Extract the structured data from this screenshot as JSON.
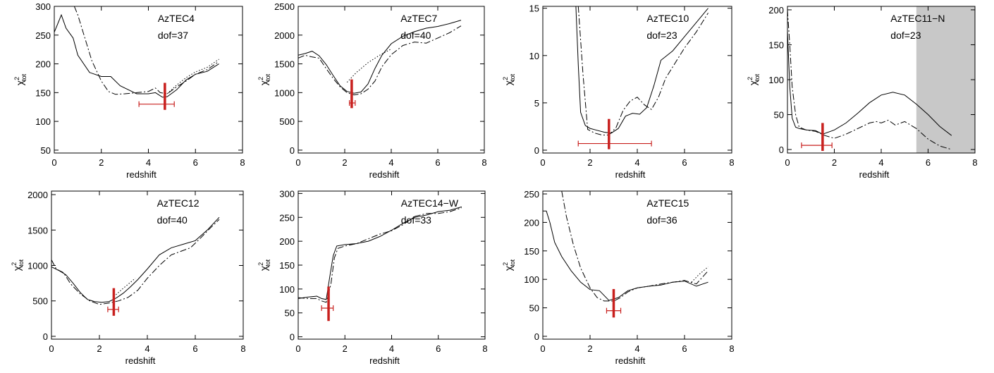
{
  "figure": {
    "xlabel": "redshift"
  },
  "chart_data": [
    {
      "type": "line",
      "panel": "AzTEC4",
      "name": "AzTEC4",
      "dof_label": "dof=37",
      "xlim": [
        0,
        8
      ],
      "ylim": [
        45,
        300
      ],
      "xticks": [
        0,
        2,
        4,
        6,
        8
      ],
      "yticks": [
        50,
        100,
        150,
        200,
        250,
        300
      ],
      "ylabel": "χ²tot",
      "xlabel": "redshift",
      "series": [
        {
          "style": "solid",
          "x": [
            0,
            0.15,
            0.3,
            0.5,
            0.8,
            1.0,
            1.5,
            2.0,
            2.4,
            2.8,
            3.5,
            4.0,
            4.3,
            4.6,
            4.8,
            5.2,
            5.6,
            6.0,
            6.5,
            7.0
          ],
          "y": [
            255,
            270,
            285,
            262,
            245,
            215,
            185,
            178,
            178,
            162,
            148,
            148,
            150,
            142,
            143,
            155,
            172,
            182,
            187,
            200
          ]
        },
        {
          "style": "dashdot",
          "x": [
            0.85,
            1.0,
            1.3,
            1.6,
            2.0,
            2.3,
            2.6,
            3.0,
            3.5,
            4.0,
            4.3,
            4.5,
            4.8,
            5.2,
            5.6,
            6.0,
            6.5,
            7.0
          ],
          "y": [
            300,
            285,
            245,
            205,
            170,
            152,
            147,
            148,
            150,
            152,
            158,
            150,
            148,
            160,
            170,
            182,
            190,
            204
          ]
        },
        {
          "style": "dotted",
          "x": [
            4.8,
            5.2,
            5.6,
            6.0,
            6.5,
            7.0
          ],
          "y": [
            148,
            163,
            176,
            186,
            194,
            208
          ]
        }
      ],
      "estimate": {
        "z": 4.7,
        "z_lo": 3.6,
        "z_hi": 5.1,
        "z_err_y": 130,
        "bar_ymin": 120,
        "bar_ymax": 167
      }
    },
    {
      "type": "line",
      "panel": "AzTEC7",
      "name": "AzTEC7",
      "dof_label": "dof=40",
      "xlim": [
        0,
        8
      ],
      "ylim": [
        -50,
        2500
      ],
      "xticks": [
        0,
        2,
        4,
        6,
        8
      ],
      "yticks": [
        0,
        500,
        1000,
        1500,
        2000,
        2500
      ],
      "ylabel": "χ²tot",
      "xlabel": "redshift",
      "series": [
        {
          "style": "solid",
          "x": [
            0,
            0.3,
            0.6,
            0.9,
            1.2,
            1.5,
            1.8,
            2.1,
            2.4,
            2.7,
            3.0,
            3.3,
            3.6,
            4.0,
            4.5,
            5.0,
            5.5,
            6.0,
            6.5,
            7.0
          ],
          "y": [
            1650,
            1680,
            1720,
            1640,
            1490,
            1300,
            1120,
            1020,
            990,
            1010,
            1150,
            1420,
            1650,
            1850,
            1980,
            2060,
            2120,
            2150,
            2200,
            2260
          ]
        },
        {
          "style": "dashdot",
          "x": [
            0,
            0.3,
            0.6,
            0.9,
            1.2,
            1.5,
            1.8,
            2.1,
            2.4,
            2.7,
            3.0,
            3.3,
            3.6,
            4.0,
            4.5,
            5.0,
            5.5,
            6.0,
            6.5,
            7.0
          ],
          "y": [
            1600,
            1650,
            1620,
            1600,
            1420,
            1250,
            1100,
            1000,
            960,
            980,
            1060,
            1200,
            1450,
            1660,
            1820,
            1880,
            1860,
            1950,
            2040,
            2160
          ]
        },
        {
          "style": "dotted",
          "x": [
            2.1,
            2.5,
            3.0,
            3.5,
            4.0
          ],
          "y": [
            1180,
            1350,
            1520,
            1650,
            1760
          ]
        }
      ],
      "estimate": {
        "z": 2.3,
        "z_lo": 2.2,
        "z_hi": 2.45,
        "z_err_y": 820,
        "bar_ymin": 730,
        "bar_ymax": 1230
      }
    },
    {
      "type": "line",
      "panel": "AzTEC10",
      "name": "AzTEC10",
      "dof_label": "dof=23",
      "xlim": [
        0,
        8
      ],
      "ylim": [
        -0.3,
        15.2
      ],
      "xticks": [
        0,
        2,
        4,
        6,
        8
      ],
      "yticks": [
        0,
        5,
        10,
        15
      ],
      "ylabel": "χ²tot",
      "xlabel": "redshift",
      "series": [
        {
          "style": "solid",
          "x": [
            1.4,
            1.5,
            1.6,
            1.8,
            2.0,
            2.3,
            2.6,
            2.9,
            3.2,
            3.5,
            3.8,
            4.1,
            4.4,
            4.7,
            5.0,
            5.5,
            6.0,
            6.5,
            7.0
          ],
          "y": [
            15.2,
            9.0,
            4.0,
            2.6,
            2.3,
            2.1,
            1.9,
            1.8,
            2.3,
            3.6,
            3.9,
            3.8,
            4.5,
            6.8,
            9.5,
            10.5,
            12.0,
            13.5,
            15.0
          ]
        },
        {
          "style": "dashdot",
          "x": [
            1.5,
            1.7,
            1.9,
            2.2,
            2.5,
            2.8,
            3.1,
            3.4,
            3.7,
            4.0,
            4.3,
            4.6,
            4.9,
            5.2,
            5.6,
            6.0,
            6.5,
            7.0
          ],
          "y": [
            15.2,
            8.0,
            2.2,
            1.8,
            1.6,
            1.6,
            2.4,
            4.2,
            5.2,
            5.6,
            4.8,
            4.3,
            5.6,
            7.6,
            9.2,
            10.8,
            12.5,
            14.5
          ]
        }
      ],
      "estimate": {
        "z": 2.8,
        "z_lo": 1.5,
        "z_hi": 4.6,
        "z_err_y": 0.7,
        "bar_ymin": 0.1,
        "bar_ymax": 3.3
      }
    },
    {
      "type": "line",
      "panel": "AzTEC11-N",
      "name": "AzTEC11−N",
      "dof_label": "dof=23",
      "xlim": [
        0,
        8
      ],
      "ylim": [
        -5,
        205
      ],
      "xticks": [
        0,
        2,
        4,
        6,
        8
      ],
      "yticks": [
        0,
        50,
        100,
        150,
        200
      ],
      "ylabel": "χ²tot",
      "xlabel": "redshift",
      "shaded_region": [
        5.5,
        8
      ],
      "series": [
        {
          "style": "solid",
          "x": [
            0,
            0.1,
            0.2,
            0.35,
            0.5,
            0.8,
            1.2,
            1.5,
            2.0,
            2.5,
            3.0,
            3.5,
            4.0,
            4.5,
            5.0,
            5.5,
            6.0,
            6.5,
            7.0
          ],
          "y": [
            170,
            90,
            45,
            32,
            30,
            28,
            27,
            22,
            28,
            38,
            52,
            67,
            78,
            82,
            78,
            65,
            50,
            33,
            20
          ]
        },
        {
          "style": "dashdot",
          "x": [
            0,
            0.1,
            0.2,
            0.35,
            0.5,
            0.8,
            1.2,
            1.6,
            2.0,
            2.5,
            3.0,
            3.5,
            3.8,
            4.0,
            4.3,
            4.6,
            5.0,
            5.5,
            6.0,
            6.5,
            7.0
          ],
          "y": [
            200,
            150,
            90,
            50,
            32,
            28,
            26,
            20,
            16,
            22,
            30,
            38,
            40,
            38,
            42,
            35,
            40,
            30,
            15,
            5,
            0
          ]
        }
      ],
      "estimate": {
        "z": 1.5,
        "z_lo": 0.6,
        "z_hi": 1.9,
        "z_err_y": 6,
        "bar_ymin": -2,
        "bar_ymax": 38
      }
    },
    {
      "type": "line",
      "panel": "AzTEC12",
      "name": "AzTEC12",
      "dof_label": "dof=40",
      "xlim": [
        0,
        8
      ],
      "ylim": [
        -40,
        2050
      ],
      "xticks": [
        0,
        2,
        4,
        6,
        8
      ],
      "yticks": [
        0,
        500,
        1000,
        1500,
        2000
      ],
      "ylabel": "χ²tot",
      "xlabel": "redshift",
      "series": [
        {
          "style": "solid",
          "x": [
            0,
            0.3,
            0.6,
            0.9,
            1.2,
            1.5,
            1.8,
            2.1,
            2.4,
            2.7,
            3.0,
            3.3,
            3.6,
            4.0,
            4.5,
            5.0,
            5.5,
            6.0,
            6.5,
            7.0
          ],
          "y": [
            980,
            930,
            870,
            750,
            620,
            520,
            490,
            480,
            490,
            540,
            610,
            700,
            800,
            950,
            1150,
            1250,
            1300,
            1350,
            1500,
            1680
          ]
        },
        {
          "style": "dashdot",
          "x": [
            0,
            0.2,
            0.5,
            0.8,
            1.2,
            1.6,
            2.0,
            2.4,
            2.8,
            3.2,
            3.6,
            4.0,
            4.5,
            5.0,
            5.4,
            5.8,
            6.2,
            6.6,
            7.0
          ],
          "y": [
            1080,
            950,
            900,
            740,
            600,
            500,
            450,
            470,
            500,
            550,
            650,
            820,
            1000,
            1150,
            1200,
            1250,
            1380,
            1520,
            1650
          ]
        },
        {
          "style": "dotted",
          "x": [
            2.6,
            3.0,
            3.5
          ],
          "y": [
            560,
            680,
            820
          ]
        }
      ],
      "estimate": {
        "z": 2.6,
        "z_lo": 2.35,
        "z_hi": 2.8,
        "z_err_y": 380,
        "bar_ymin": 290,
        "bar_ymax": 680
      }
    },
    {
      "type": "line",
      "panel": "AzTEC14-W",
      "name": "AzTEC14−W",
      "dof_label": "dof=33",
      "xlim": [
        0,
        8
      ],
      "ylim": [
        -5,
        305
      ],
      "xticks": [
        0,
        2,
        4,
        6,
        8
      ],
      "yticks": [
        0,
        50,
        100,
        150,
        200,
        250,
        300
      ],
      "ylabel": "χ²tot",
      "xlabel": "redshift",
      "series": [
        {
          "style": "solid",
          "x": [
            0,
            0.4,
            0.8,
            1.0,
            1.2,
            1.35,
            1.5,
            1.65,
            2.0,
            2.5,
            3.0,
            3.5,
            4.0,
            4.5,
            5.0,
            5.5,
            6.0,
            6.5,
            7.0
          ],
          "y": [
            80,
            83,
            85,
            80,
            78,
            125,
            170,
            190,
            193,
            195,
            200,
            210,
            223,
            238,
            250,
            255,
            262,
            265,
            272
          ]
        },
        {
          "style": "dashdot",
          "x": [
            0,
            0.4,
            0.8,
            1.0,
            1.2,
            1.4,
            1.55,
            1.7,
            2.0,
            2.5,
            3.0,
            3.5,
            4.0,
            4.5,
            5.0,
            5.5,
            6.0,
            6.5,
            7.0
          ],
          "y": [
            82,
            80,
            80,
            75,
            72,
            110,
            165,
            185,
            190,
            195,
            205,
            215,
            222,
            235,
            252,
            258,
            258,
            262,
            270
          ]
        }
      ],
      "estimate": {
        "z": 1.3,
        "z_lo": 1.0,
        "z_hi": 1.5,
        "z_err_y": 60,
        "bar_ymin": 33,
        "bar_ymax": 105
      }
    },
    {
      "type": "line",
      "panel": "AzTEC15",
      "name": "AzTEC15",
      "dof_label": "dof=36",
      "xlim": [
        0,
        8
      ],
      "ylim": [
        -5,
        255
      ],
      "xticks": [
        0,
        2,
        4,
        6,
        8
      ],
      "yticks": [
        0,
        50,
        100,
        150,
        200,
        250
      ],
      "ylabel": "χ²tot",
      "xlabel": "redshift",
      "series": [
        {
          "style": "solid",
          "x": [
            0,
            0.15,
            0.3,
            0.5,
            0.8,
            1.2,
            1.6,
            2.0,
            2.4,
            2.8,
            3.2,
            3.6,
            4.0,
            4.5,
            5.0,
            5.5,
            6.0,
            6.5,
            7.0
          ],
          "y": [
            220,
            220,
            200,
            165,
            140,
            115,
            95,
            82,
            80,
            63,
            68,
            80,
            85,
            88,
            90,
            95,
            97,
            88,
            95
          ]
        },
        {
          "style": "dashdot",
          "x": [
            0.8,
            1.0,
            1.3,
            1.6,
            2.0,
            2.3,
            2.6,
            3.0,
            3.3,
            3.6,
            4.0,
            4.5,
            5.0,
            5.5,
            6.0,
            6.5,
            7.0
          ],
          "y": [
            255,
            210,
            160,
            120,
            85,
            68,
            62,
            62,
            68,
            78,
            85,
            88,
            92,
            95,
            98,
            92,
            115
          ]
        },
        {
          "style": "dotted",
          "x": [
            6.3,
            6.6,
            7.0
          ],
          "y": [
            95,
            108,
            122
          ]
        }
      ],
      "estimate": {
        "z": 3.0,
        "z_lo": 2.7,
        "z_hi": 3.3,
        "z_err_y": 45,
        "bar_ymin": 33,
        "bar_ymax": 83
      }
    }
  ]
}
